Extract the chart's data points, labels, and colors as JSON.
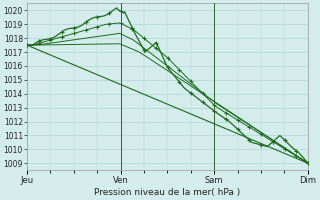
{
  "title": "Pression niveau de la mer( hPa )",
  "bg_color": "#d4ecec",
  "grid_color": "#b0d4d4",
  "line_color": "#1a6b1a",
  "vline_color": "#336633",
  "ylim": [
    1008.5,
    1020.5
  ],
  "yticks": [
    1009,
    1010,
    1011,
    1012,
    1013,
    1014,
    1015,
    1016,
    1017,
    1018,
    1019,
    1020
  ],
  "xtick_labels": [
    "Jeu",
    "Ven",
    "Sam",
    "Dim"
  ],
  "xtick_positions": [
    0.0,
    0.333,
    0.666,
    1.0
  ],
  "total_points": 289,
  "xlabel_fontsize": 6.5,
  "tick_fontsize": 5.5
}
